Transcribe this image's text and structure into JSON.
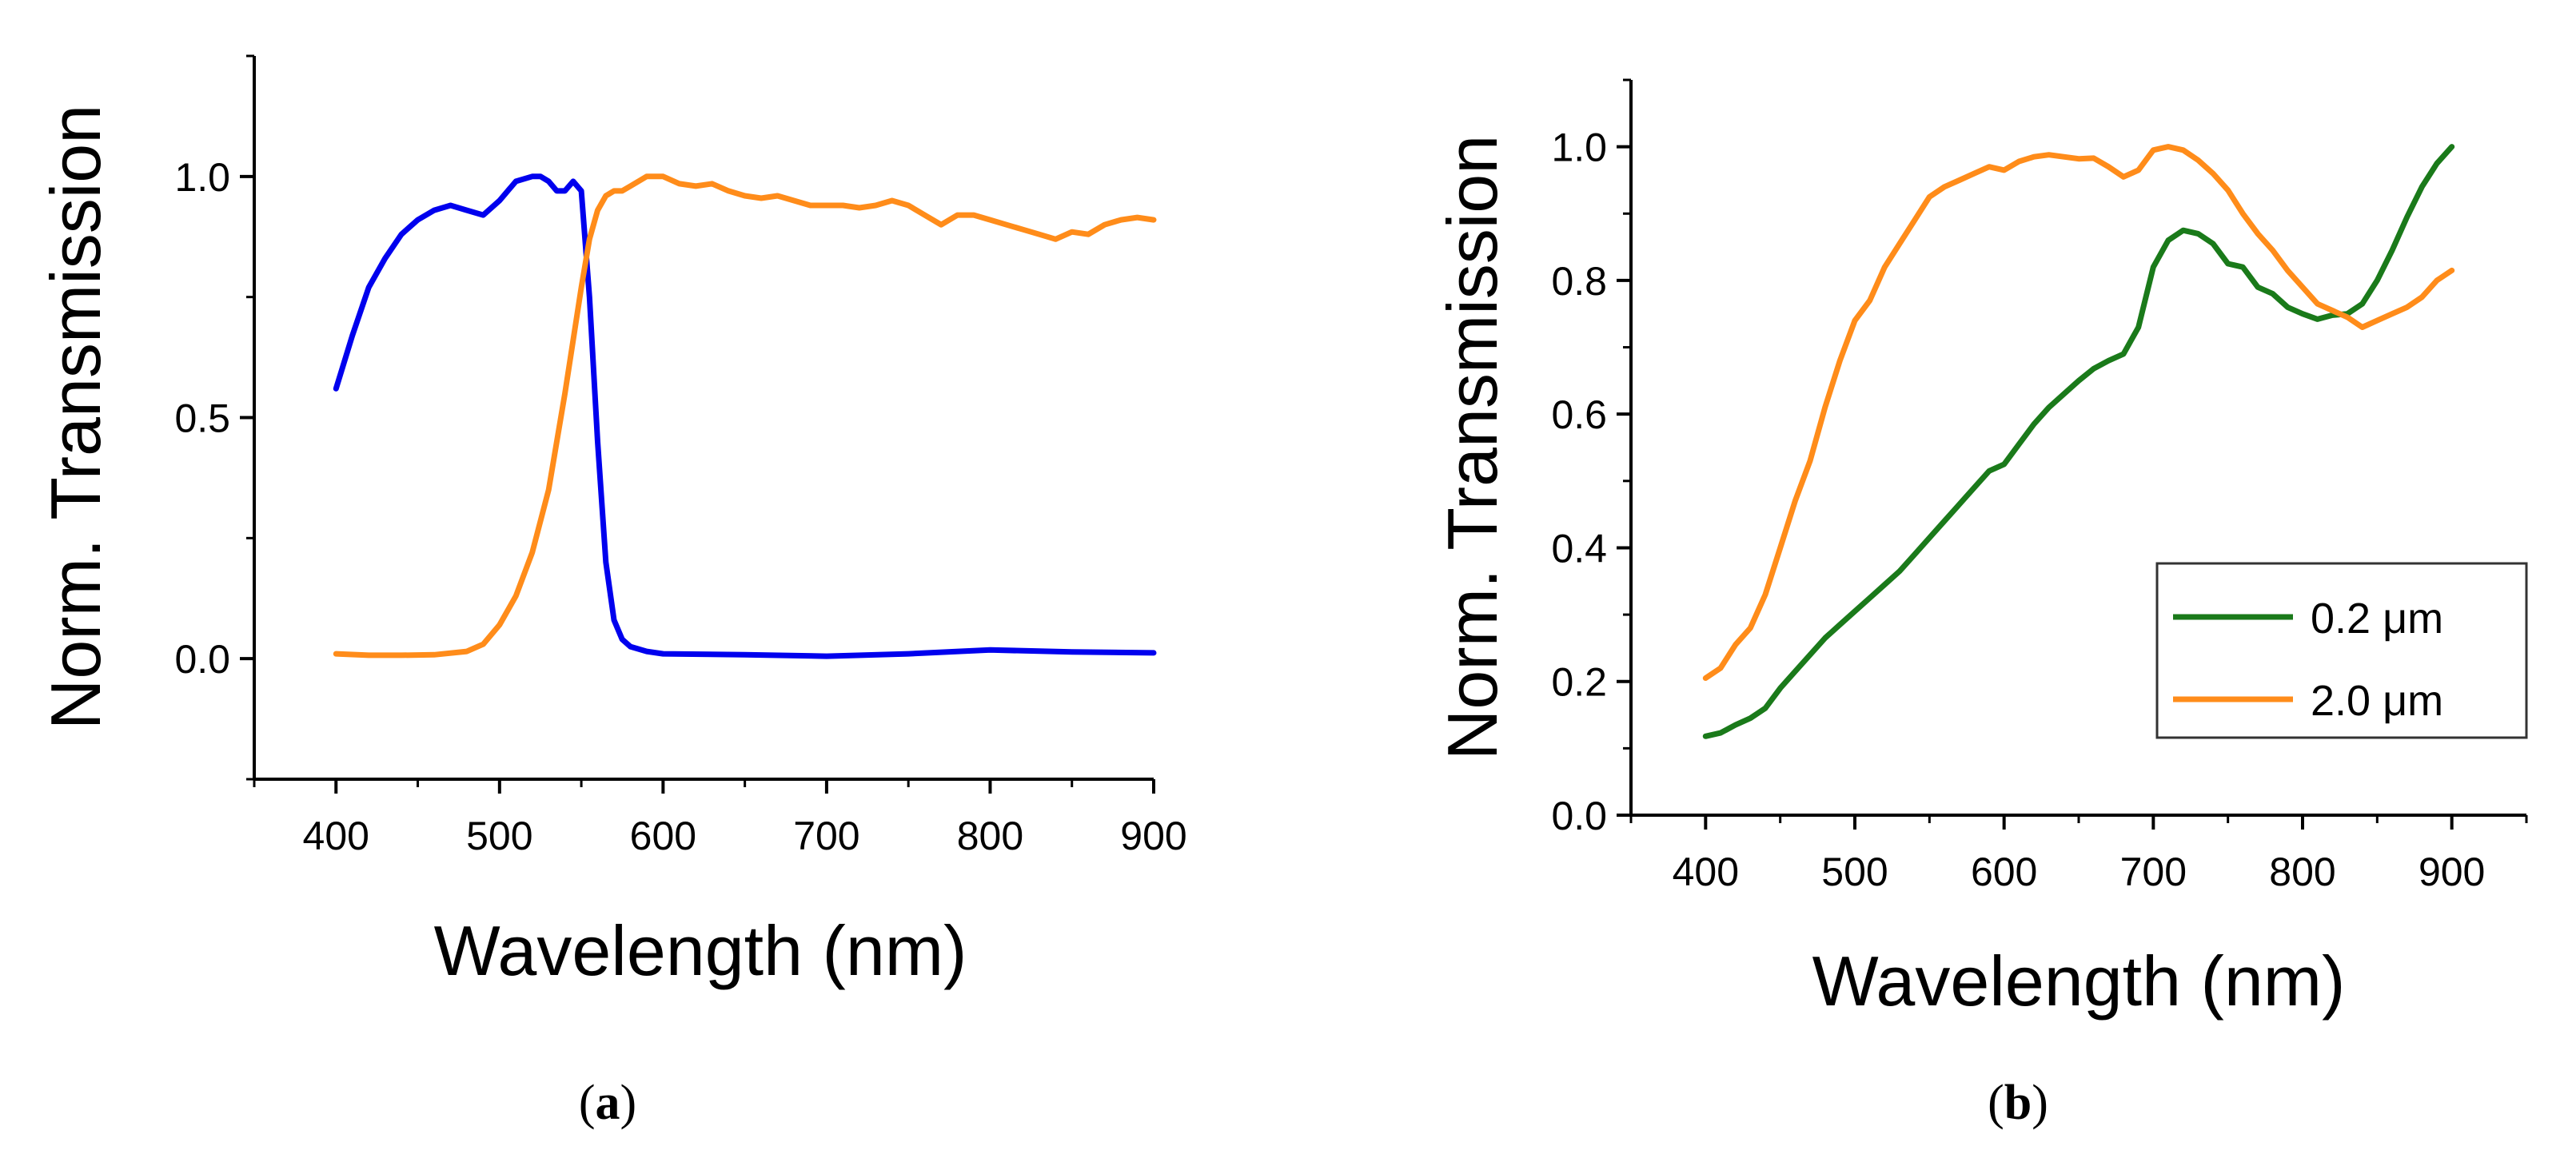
{
  "chart_data": [
    {
      "id": "a",
      "type": "line",
      "xlabel": "Wavelength (nm)",
      "ylabel": "Norm. Transmission",
      "xlim": [
        350,
        900
      ],
      "ylim": [
        -0.25,
        1.25
      ],
      "xticks": [
        400,
        500,
        600,
        700,
        800,
        900
      ],
      "xtick_labels": [
        "400",
        "500",
        "600",
        "700",
        "800",
        "900"
      ],
      "yticks": [
        0.0,
        0.5,
        1.0
      ],
      "ytick_labels": [
        "0.0",
        "0.5",
        "1.0"
      ],
      "caption": {
        "open": "(",
        "letter": "a",
        "close": ")"
      },
      "series": [
        {
          "name": "blue",
          "color": "#0000ee",
          "x": [
            400,
            410,
            420,
            430,
            440,
            450,
            460,
            470,
            480,
            490,
            500,
            510,
            520,
            525,
            530,
            535,
            540,
            545,
            550,
            555,
            560,
            565,
            570,
            575,
            580,
            590,
            600,
            650,
            700,
            750,
            800,
            850,
            900
          ],
          "y": [
            0.56,
            0.67,
            0.77,
            0.83,
            0.88,
            0.91,
            0.93,
            0.94,
            0.93,
            0.92,
            0.95,
            0.99,
            1.0,
            1.0,
            0.99,
            0.97,
            0.97,
            0.99,
            0.97,
            0.75,
            0.45,
            0.2,
            0.08,
            0.04,
            0.025,
            0.015,
            0.01,
            0.008,
            0.005,
            0.01,
            0.018,
            0.014,
            0.012
          ]
        },
        {
          "name": "orange",
          "color": "#ff8c1a",
          "x": [
            400,
            420,
            440,
            460,
            480,
            490,
            500,
            510,
            520,
            530,
            540,
            550,
            555,
            560,
            565,
            570,
            575,
            580,
            590,
            600,
            610,
            620,
            630,
            640,
            650,
            660,
            670,
            680,
            690,
            700,
            710,
            720,
            730,
            740,
            750,
            760,
            770,
            780,
            790,
            800,
            810,
            820,
            830,
            840,
            850,
            860,
            870,
            880,
            890,
            900
          ],
          "y": [
            0.01,
            0.007,
            0.007,
            0.008,
            0.015,
            0.03,
            0.07,
            0.13,
            0.22,
            0.35,
            0.55,
            0.77,
            0.87,
            0.93,
            0.96,
            0.97,
            0.97,
            0.98,
            1.0,
            1.0,
            0.985,
            0.98,
            0.985,
            0.97,
            0.96,
            0.955,
            0.96,
            0.95,
            0.94,
            0.94,
            0.94,
            0.935,
            0.94,
            0.95,
            0.94,
            0.92,
            0.9,
            0.92,
            0.92,
            0.91,
            0.9,
            0.89,
            0.88,
            0.87,
            0.885,
            0.88,
            0.9,
            0.91,
            0.915,
            0.91
          ]
        }
      ]
    },
    {
      "id": "b",
      "type": "line",
      "xlabel": "Wavelength (nm)",
      "ylabel": "Norm. Transmission",
      "xlim": [
        350,
        950
      ],
      "ylim": [
        0.0,
        1.1
      ],
      "xticks": [
        400,
        500,
        600,
        700,
        800,
        900
      ],
      "xtick_labels": [
        "400",
        "500",
        "600",
        "700",
        "800",
        "900"
      ],
      "yticks": [
        0.0,
        0.2,
        0.4,
        0.6,
        0.8,
        1.0
      ],
      "ytick_labels": [
        "0.0",
        "0.2",
        "0.4",
        "0.6",
        "0.8",
        "1.0"
      ],
      "legend": {
        "position": "middle-right"
      },
      "caption": {
        "open": "(",
        "letter": "b",
        "close": ")"
      },
      "series": [
        {
          "name": "0.2 μm",
          "color": "#1a7a1a",
          "x": [
            400,
            410,
            420,
            430,
            440,
            450,
            460,
            470,
            480,
            490,
            500,
            510,
            520,
            530,
            540,
            550,
            560,
            570,
            580,
            590,
            600,
            610,
            620,
            630,
            640,
            650,
            660,
            670,
            680,
            690,
            700,
            710,
            720,
            730,
            740,
            750,
            760,
            770,
            780,
            790,
            800,
            810,
            820,
            830,
            840,
            850,
            860,
            870,
            880,
            890,
            900
          ],
          "y": [
            0.118,
            0.123,
            0.135,
            0.145,
            0.16,
            0.19,
            0.215,
            0.24,
            0.265,
            0.285,
            0.305,
            0.325,
            0.345,
            0.365,
            0.39,
            0.415,
            0.44,
            0.465,
            0.49,
            0.515,
            0.525,
            0.555,
            0.585,
            0.61,
            0.63,
            0.65,
            0.668,
            0.68,
            0.69,
            0.73,
            0.82,
            0.86,
            0.875,
            0.87,
            0.855,
            0.825,
            0.82,
            0.79,
            0.78,
            0.76,
            0.75,
            0.742,
            0.748,
            0.75,
            0.765,
            0.8,
            0.845,
            0.895,
            0.94,
            0.975,
            1.0
          ]
        },
        {
          "name": "2.0 μm",
          "color": "#ff8c1a",
          "x": [
            400,
            410,
            420,
            430,
            440,
            450,
            460,
            470,
            480,
            490,
            500,
            510,
            520,
            530,
            540,
            550,
            560,
            570,
            580,
            590,
            600,
            610,
            620,
            630,
            640,
            650,
            660,
            670,
            680,
            690,
            700,
            710,
            720,
            730,
            740,
            750,
            760,
            770,
            780,
            790,
            800,
            810,
            820,
            830,
            840,
            850,
            860,
            870,
            880,
            890,
            900
          ],
          "y": [
            0.205,
            0.22,
            0.255,
            0.28,
            0.33,
            0.4,
            0.47,
            0.53,
            0.61,
            0.68,
            0.74,
            0.77,
            0.82,
            0.855,
            0.89,
            0.925,
            0.94,
            0.95,
            0.96,
            0.97,
            0.965,
            0.978,
            0.985,
            0.988,
            0.985,
            0.982,
            0.983,
            0.97,
            0.955,
            0.965,
            0.995,
            1.0,
            0.995,
            0.98,
            0.96,
            0.935,
            0.9,
            0.87,
            0.845,
            0.815,
            0.79,
            0.765,
            0.755,
            0.745,
            0.73,
            0.74,
            0.75,
            0.76,
            0.775,
            0.8,
            0.815
          ]
        }
      ]
    }
  ]
}
